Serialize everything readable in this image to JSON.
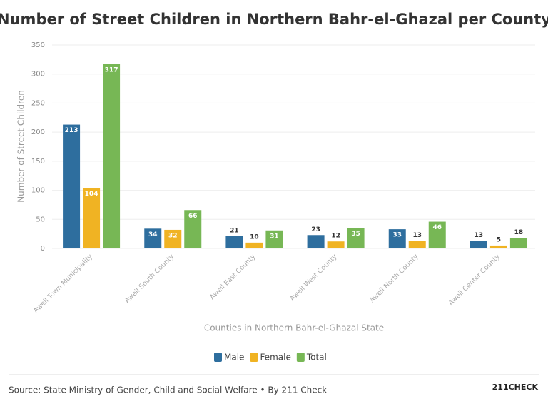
{
  "chart_data": {
    "type": "bar",
    "title": "Number of Street Children in Northern Bahr-el-Ghazal per County",
    "x_label": "Counties in Northern Bahr-el-Ghazal State",
    "y_label": "Number of Street Children",
    "categories": [
      "Aweil Town Municipality",
      "Aweil South County",
      "Aweil East County",
      "Aweil West County",
      "Aweil North County",
      "Aweil Center County"
    ],
    "series": [
      {
        "name": "Male",
        "color": "#2e6e9e",
        "values": [
          213,
          34,
          21,
          23,
          33,
          13
        ]
      },
      {
        "name": "Female",
        "color": "#f0b323",
        "values": [
          104,
          32,
          10,
          12,
          13,
          5
        ]
      },
      {
        "name": "Total",
        "color": "#77b755",
        "values": [
          317,
          66,
          31,
          35,
          46,
          18
        ]
      }
    ],
    "ylim": [
      0,
      350
    ],
    "yticks": [
      0,
      50,
      100,
      150,
      200,
      250,
      300,
      350
    ],
    "grid": true,
    "legend": "bottom",
    "source": "Source: State Ministry of Gender, Child and Social Welfare • By 211 Check",
    "logo": "211CHECK"
  }
}
